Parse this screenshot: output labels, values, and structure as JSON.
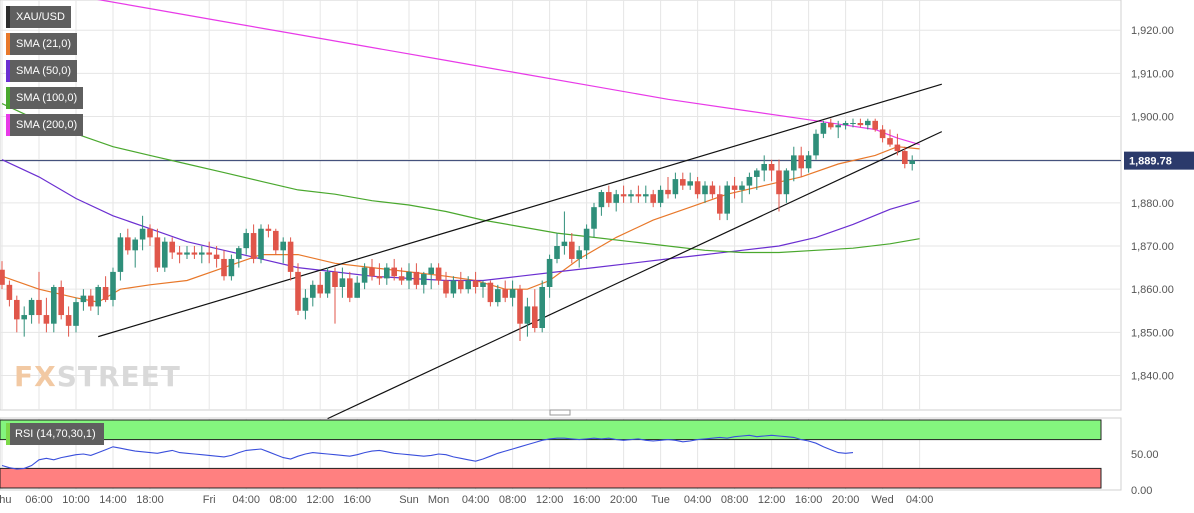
{
  "chart_data": {
    "type": "candlestick",
    "symbol": "XAU/USD",
    "last_price": "1,889.78",
    "ylim": [
      1832,
      1927
    ],
    "y_ticks": [
      1840,
      1850,
      1860,
      1870,
      1880,
      1890,
      1900,
      1910,
      1920
    ],
    "y_tick_labels": [
      "1,840.00",
      "1,850.00",
      "1,860.00",
      "1,870.00",
      "1,880.00",
      "1,890.00",
      "1,900.00",
      "1,910.00",
      "1,920.00"
    ],
    "x_ticks": [
      {
        "i": 0,
        "label": "Thu"
      },
      {
        "i": 5,
        "label": "06:00"
      },
      {
        "i": 10,
        "label": "10:00"
      },
      {
        "i": 15,
        "label": "14:00"
      },
      {
        "i": 20,
        "label": "18:00"
      },
      {
        "i": 28,
        "label": "Fri"
      },
      {
        "i": 33,
        "label": "04:00"
      },
      {
        "i": 38,
        "label": "08:00"
      },
      {
        "i": 43,
        "label": "12:00"
      },
      {
        "i": 48,
        "label": "16:00"
      },
      {
        "i": 55,
        "label": "Sun"
      },
      {
        "i": 59,
        "label": "Mon"
      },
      {
        "i": 64,
        "label": "04:00"
      },
      {
        "i": 69,
        "label": "08:00"
      },
      {
        "i": 74,
        "label": "12:00"
      },
      {
        "i": 79,
        "label": "16:00"
      },
      {
        "i": 84,
        "label": "20:00"
      },
      {
        "i": 89,
        "label": "Tue"
      },
      {
        "i": 94,
        "label": "04:00"
      },
      {
        "i": 99,
        "label": "08:00"
      },
      {
        "i": 104,
        "label": "12:00"
      },
      {
        "i": 109,
        "label": "16:00"
      },
      {
        "i": 114,
        "label": "20:00"
      },
      {
        "i": 119,
        "label": "Wed"
      },
      {
        "i": 124,
        "label": "04:00"
      }
    ],
    "candles": [
      [
        1864.5,
        1866.5,
        1860,
        1861
      ],
      [
        1861,
        1862,
        1856,
        1857.5
      ],
      [
        1857.5,
        1858.5,
        1850,
        1853
      ],
      [
        1853,
        1856,
        1849,
        1854
      ],
      [
        1854,
        1858,
        1852,
        1857.5
      ],
      [
        1857.5,
        1864,
        1852,
        1854
      ],
      [
        1854,
        1858,
        1850,
        1852
      ],
      [
        1852,
        1861,
        1850,
        1860.5
      ],
      [
        1860.5,
        1862,
        1853,
        1854
      ],
      [
        1854,
        1856,
        1849,
        1851.5
      ],
      [
        1851.5,
        1858,
        1850,
        1857
      ],
      [
        1857,
        1860,
        1855,
        1858.5
      ],
      [
        1858.5,
        1860,
        1855,
        1856
      ],
      [
        1856,
        1861,
        1854,
        1860.5
      ],
      [
        1860.5,
        1863,
        1857,
        1857.5
      ],
      [
        1857.5,
        1865,
        1856,
        1864
      ],
      [
        1864,
        1873,
        1862,
        1872
      ],
      [
        1872,
        1874,
        1868,
        1869
      ],
      [
        1869,
        1872,
        1865,
        1871.5
      ],
      [
        1871.5,
        1877,
        1869,
        1874
      ],
      [
        1874,
        1875,
        1870,
        1872
      ],
      [
        1872,
        1874,
        1864,
        1865
      ],
      [
        1865,
        1872,
        1864,
        1871
      ],
      [
        1871,
        1872,
        1867,
        1868.5
      ],
      [
        1868.5,
        1870,
        1866,
        1868
      ],
      [
        1868,
        1870,
        1867,
        1868.5
      ],
      [
        1868.5,
        1870,
        1867,
        1868
      ],
      [
        1868,
        1870,
        1866,
        1868.5
      ],
      [
        1868.5,
        1871,
        1866,
        1868
      ],
      [
        1868,
        1870,
        1865,
        1867
      ],
      [
        1867,
        1869,
        1862,
        1863
      ],
      [
        1863,
        1868,
        1862,
        1867
      ],
      [
        1867,
        1870,
        1865,
        1869.5
      ],
      [
        1869.5,
        1874,
        1868,
        1873
      ],
      [
        1873,
        1875,
        1866,
        1867
      ],
      [
        1867,
        1875,
        1866,
        1874
      ],
      [
        1874,
        1875,
        1872,
        1873.5
      ],
      [
        1873.5,
        1874,
        1868,
        1869
      ],
      [
        1869,
        1872,
        1866,
        1871
      ],
      [
        1871,
        1872,
        1862,
        1864
      ],
      [
        1864,
        1866,
        1854,
        1855
      ],
      [
        1855,
        1860,
        1853,
        1858
      ],
      [
        1858,
        1862,
        1856,
        1861
      ],
      [
        1861,
        1864,
        1858,
        1859
      ],
      [
        1859,
        1865,
        1858,
        1864
      ],
      [
        1864,
        1865,
        1852,
        1860.5
      ],
      [
        1860.5,
        1865,
        1858,
        1862.5
      ],
      [
        1862.5,
        1864,
        1857,
        1858
      ],
      [
        1858,
        1863,
        1858,
        1861.5
      ],
      [
        1861.5,
        1866,
        1860,
        1865
      ],
      [
        1865,
        1867,
        1862,
        1863
      ],
      [
        1863,
        1866,
        1861,
        1862.5
      ],
      [
        1862.5,
        1866,
        1861,
        1865
      ],
      [
        1865,
        1867,
        1862,
        1863
      ],
      [
        1863,
        1865,
        1861,
        1862
      ],
      [
        1862,
        1866,
        1860,
        1864
      ],
      [
        1864,
        1866,
        1860,
        1861
      ],
      [
        1861,
        1864,
        1859,
        1863.5
      ],
      [
        1863.5,
        1866,
        1860,
        1865
      ],
      [
        1865,
        1866,
        1861,
        1862
      ],
      [
        1862,
        1864,
        1858,
        1859
      ],
      [
        1859,
        1863,
        1858,
        1862
      ],
      [
        1862,
        1864,
        1859,
        1860
      ],
      [
        1860,
        1863,
        1859,
        1862
      ],
      [
        1862,
        1864,
        1859,
        1860.5
      ],
      [
        1860.5,
        1862,
        1858,
        1861.5
      ],
      [
        1861.5,
        1862,
        1856,
        1857
      ],
      [
        1857,
        1861,
        1856,
        1860
      ],
      [
        1860,
        1862,
        1857,
        1858
      ],
      [
        1858,
        1862,
        1856,
        1860
      ],
      [
        1860,
        1861,
        1848,
        1852
      ],
      [
        1852,
        1858,
        1849,
        1856
      ],
      [
        1856,
        1860,
        1850,
        1851
      ],
      [
        1851,
        1862,
        1850,
        1860.5
      ],
      [
        1860.5,
        1868,
        1858,
        1867
      ],
      [
        1867,
        1873,
        1866,
        1870
      ],
      [
        1870,
        1878,
        1868,
        1871
      ],
      [
        1871,
        1873,
        1866,
        1867
      ],
      [
        1867,
        1870,
        1865,
        1869
      ],
      [
        1869,
        1875,
        1867,
        1874
      ],
      [
        1874,
        1880,
        1872,
        1879
      ],
      [
        1879,
        1883,
        1877,
        1882.5
      ],
      [
        1882.5,
        1884,
        1879,
        1880
      ],
      [
        1880,
        1883,
        1878,
        1882
      ],
      [
        1882,
        1884,
        1880,
        1881.5
      ],
      [
        1881.5,
        1883,
        1880,
        1882
      ],
      [
        1882,
        1884,
        1880,
        1881.5
      ],
      [
        1881.5,
        1884,
        1880,
        1882
      ],
      [
        1882,
        1883,
        1879,
        1880
      ],
      [
        1880,
        1884,
        1879,
        1883
      ],
      [
        1883,
        1886,
        1881,
        1882
      ],
      [
        1882,
        1887,
        1881,
        1885.5
      ],
      [
        1885.5,
        1887,
        1883,
        1884
      ],
      [
        1884,
        1887,
        1883,
        1885
      ],
      [
        1885,
        1886,
        1881,
        1882
      ],
      [
        1882,
        1885,
        1880,
        1884
      ],
      [
        1884,
        1885,
        1881,
        1882
      ],
      [
        1882,
        1884,
        1876,
        1877.5
      ],
      [
        1877.5,
        1885,
        1876,
        1884
      ],
      [
        1884,
        1886,
        1881,
        1883
      ],
      [
        1883,
        1885,
        1880,
        1884
      ],
      [
        1884,
        1887,
        1882,
        1886
      ],
      [
        1886,
        1888,
        1883,
        1887.5
      ],
      [
        1887.5,
        1891,
        1885,
        1889
      ],
      [
        1889,
        1890,
        1885,
        1887.5
      ],
      [
        1887.5,
        1890,
        1878,
        1882
      ],
      [
        1882,
        1888,
        1880,
        1887.5
      ],
      [
        1887.5,
        1893,
        1885,
        1891
      ],
      [
        1891,
        1893,
        1886,
        1888
      ],
      [
        1888,
        1892,
        1887,
        1891
      ],
      [
        1891,
        1897,
        1890,
        1896
      ],
      [
        1896,
        1899,
        1895,
        1898.5
      ],
      [
        1898.5,
        1899.5,
        1897,
        1897.5
      ],
      [
        1897.5,
        1899,
        1895,
        1898
      ],
      [
        1898,
        1899,
        1897,
        1898.5
      ],
      [
        1898.5,
        1899.5,
        1897.5,
        1898.5
      ],
      [
        1898.5,
        1899.5,
        1897.5,
        1898
      ],
      [
        1898,
        1899.5,
        1897,
        1899
      ],
      [
        1899,
        1899.5,
        1896.5,
        1897
      ],
      [
        1897,
        1898,
        1894,
        1895
      ],
      [
        1895,
        1897,
        1893,
        1893.5
      ],
      [
        1893.5,
        1896,
        1891,
        1892
      ],
      [
        1892,
        1893,
        1888,
        1889
      ],
      [
        1889,
        1891,
        1887.5,
        1889.78
      ]
    ],
    "series": [
      {
        "name": "SMA (21,0)",
        "color": "#e8782a",
        "points": [
          [
            0,
            1863
          ],
          [
            5,
            1860
          ],
          [
            10,
            1858
          ],
          [
            13,
            1857
          ],
          [
            16,
            1860
          ],
          [
            20,
            1861
          ],
          [
            25,
            1862
          ],
          [
            30,
            1865
          ],
          [
            35,
            1868
          ],
          [
            40,
            1868
          ],
          [
            45,
            1866
          ],
          [
            50,
            1865
          ],
          [
            55,
            1864
          ],
          [
            60,
            1863
          ],
          [
            64,
            1862
          ],
          [
            68,
            1860
          ],
          [
            71,
            1860
          ],
          [
            74,
            1862
          ],
          [
            78,
            1867
          ],
          [
            83,
            1872
          ],
          [
            88,
            1876
          ],
          [
            93,
            1879
          ],
          [
            98,
            1882
          ],
          [
            103,
            1884
          ],
          [
            108,
            1886
          ],
          [
            113,
            1889
          ],
          [
            118,
            1891
          ],
          [
            121,
            1893
          ],
          [
            124,
            1892.5
          ]
        ]
      },
      {
        "name": "SMA (50,0)",
        "color": "#6b2fd1",
        "points": [
          [
            0,
            1890
          ],
          [
            5,
            1886
          ],
          [
            10,
            1881
          ],
          [
            15,
            1877
          ],
          [
            20,
            1874
          ],
          [
            25,
            1871
          ],
          [
            30,
            1869
          ],
          [
            35,
            1867
          ],
          [
            40,
            1865
          ],
          [
            45,
            1864
          ],
          [
            50,
            1863
          ],
          [
            55,
            1862.5
          ],
          [
            60,
            1862
          ],
          [
            65,
            1862
          ],
          [
            70,
            1863
          ],
          [
            75,
            1864
          ],
          [
            80,
            1865
          ],
          [
            85,
            1866
          ],
          [
            90,
            1867
          ],
          [
            95,
            1868
          ],
          [
            100,
            1869
          ],
          [
            105,
            1870
          ],
          [
            110,
            1872
          ],
          [
            115,
            1875
          ],
          [
            120,
            1878.5
          ],
          [
            124,
            1880.5
          ]
        ]
      },
      {
        "name": "SMA (100,0)",
        "color": "#4aa82e",
        "points": [
          [
            0,
            1903
          ],
          [
            5,
            1899
          ],
          [
            10,
            1896
          ],
          [
            15,
            1893
          ],
          [
            20,
            1891
          ],
          [
            25,
            1889
          ],
          [
            30,
            1887
          ],
          [
            35,
            1885
          ],
          [
            40,
            1883
          ],
          [
            45,
            1882
          ],
          [
            50,
            1880.5
          ],
          [
            55,
            1879.5
          ],
          [
            60,
            1878
          ],
          [
            65,
            1876
          ],
          [
            70,
            1874.5
          ],
          [
            75,
            1873
          ],
          [
            80,
            1872
          ],
          [
            85,
            1871
          ],
          [
            90,
            1870
          ],
          [
            95,
            1869
          ],
          [
            100,
            1868.5
          ],
          [
            105,
            1868.5
          ],
          [
            110,
            1869
          ],
          [
            115,
            1869.5
          ],
          [
            120,
            1870.5
          ],
          [
            124,
            1871.7
          ]
        ]
      },
      {
        "name": "SMA (200,0)",
        "color": "#e83ae8",
        "points": [
          [
            0,
            1931
          ],
          [
            10,
            1928
          ],
          [
            20,
            1925
          ],
          [
            30,
            1922
          ],
          [
            40,
            1919
          ],
          [
            50,
            1916
          ],
          [
            60,
            1913
          ],
          [
            70,
            1910
          ],
          [
            80,
            1907
          ],
          [
            90,
            1904
          ],
          [
            100,
            1901.5
          ],
          [
            110,
            1899
          ],
          [
            118,
            1897
          ],
          [
            121,
            1895
          ],
          [
            124,
            1893.5
          ]
        ]
      }
    ],
    "trendlines": [
      {
        "points": [
          [
            13,
            1849
          ],
          [
            127,
            1907.5
          ]
        ],
        "color": "#111111"
      },
      {
        "points": [
          [
            44,
            1830
          ],
          [
            127,
            1896.5
          ]
        ],
        "color": "#111111"
      }
    ],
    "last_price_line": 1889.78,
    "rsi": {
      "label": "RSI (14,70,30,1)",
      "ylim": [
        0,
        100
      ],
      "y_ticks": [
        0,
        50
      ],
      "y_tick_labels": [
        "0.00",
        "50.00"
      ],
      "overbought": 70,
      "oversold": 30,
      "values": [
        34,
        31,
        29,
        30,
        34,
        42,
        44,
        42,
        45,
        47,
        49,
        50,
        48,
        52,
        56,
        60,
        58,
        56,
        54,
        53,
        52,
        51,
        53,
        55,
        52,
        51,
        50,
        49,
        48,
        47,
        46,
        48,
        52,
        55,
        56,
        57,
        53,
        49,
        45,
        43,
        47,
        50,
        52,
        51,
        50,
        49,
        48,
        47,
        49,
        52,
        54,
        55,
        53,
        51,
        50,
        49,
        48,
        47,
        48,
        50,
        49,
        46,
        44,
        42,
        40,
        43,
        47,
        51,
        54,
        57,
        60,
        63,
        66,
        69,
        71,
        72,
        72,
        71,
        70,
        71,
        72,
        71,
        72,
        70,
        69,
        70,
        71,
        69,
        68,
        69,
        70,
        69,
        67,
        68,
        70,
        71,
        72,
        73,
        72,
        74,
        75,
        76,
        74,
        75,
        76,
        75,
        74,
        73,
        70,
        68,
        65,
        60,
        56,
        52,
        51,
        52
      ]
    },
    "legend": [
      {
        "label": "XAU/USD",
        "color": "#2d2d2d"
      },
      {
        "label": "SMA (21,0)",
        "color": "#e8782a"
      },
      {
        "label": "SMA (50,0)",
        "color": "#6b2fd1"
      },
      {
        "label": "SMA (100,0)",
        "color": "#4aa82e"
      },
      {
        "label": "SMA (200,0)",
        "color": "#e83ae8"
      }
    ],
    "colors": {
      "up": "#2f8f7a",
      "down": "#e0564a",
      "grid": "#e6e6e6",
      "axis_text": "#555555",
      "rsi_line": "#3a4fdc",
      "rsi_over": "#84f57e",
      "rsi_under": "#ff8080"
    }
  },
  "watermark": {
    "brand_a": "FX",
    "brand_b": "STREET"
  }
}
